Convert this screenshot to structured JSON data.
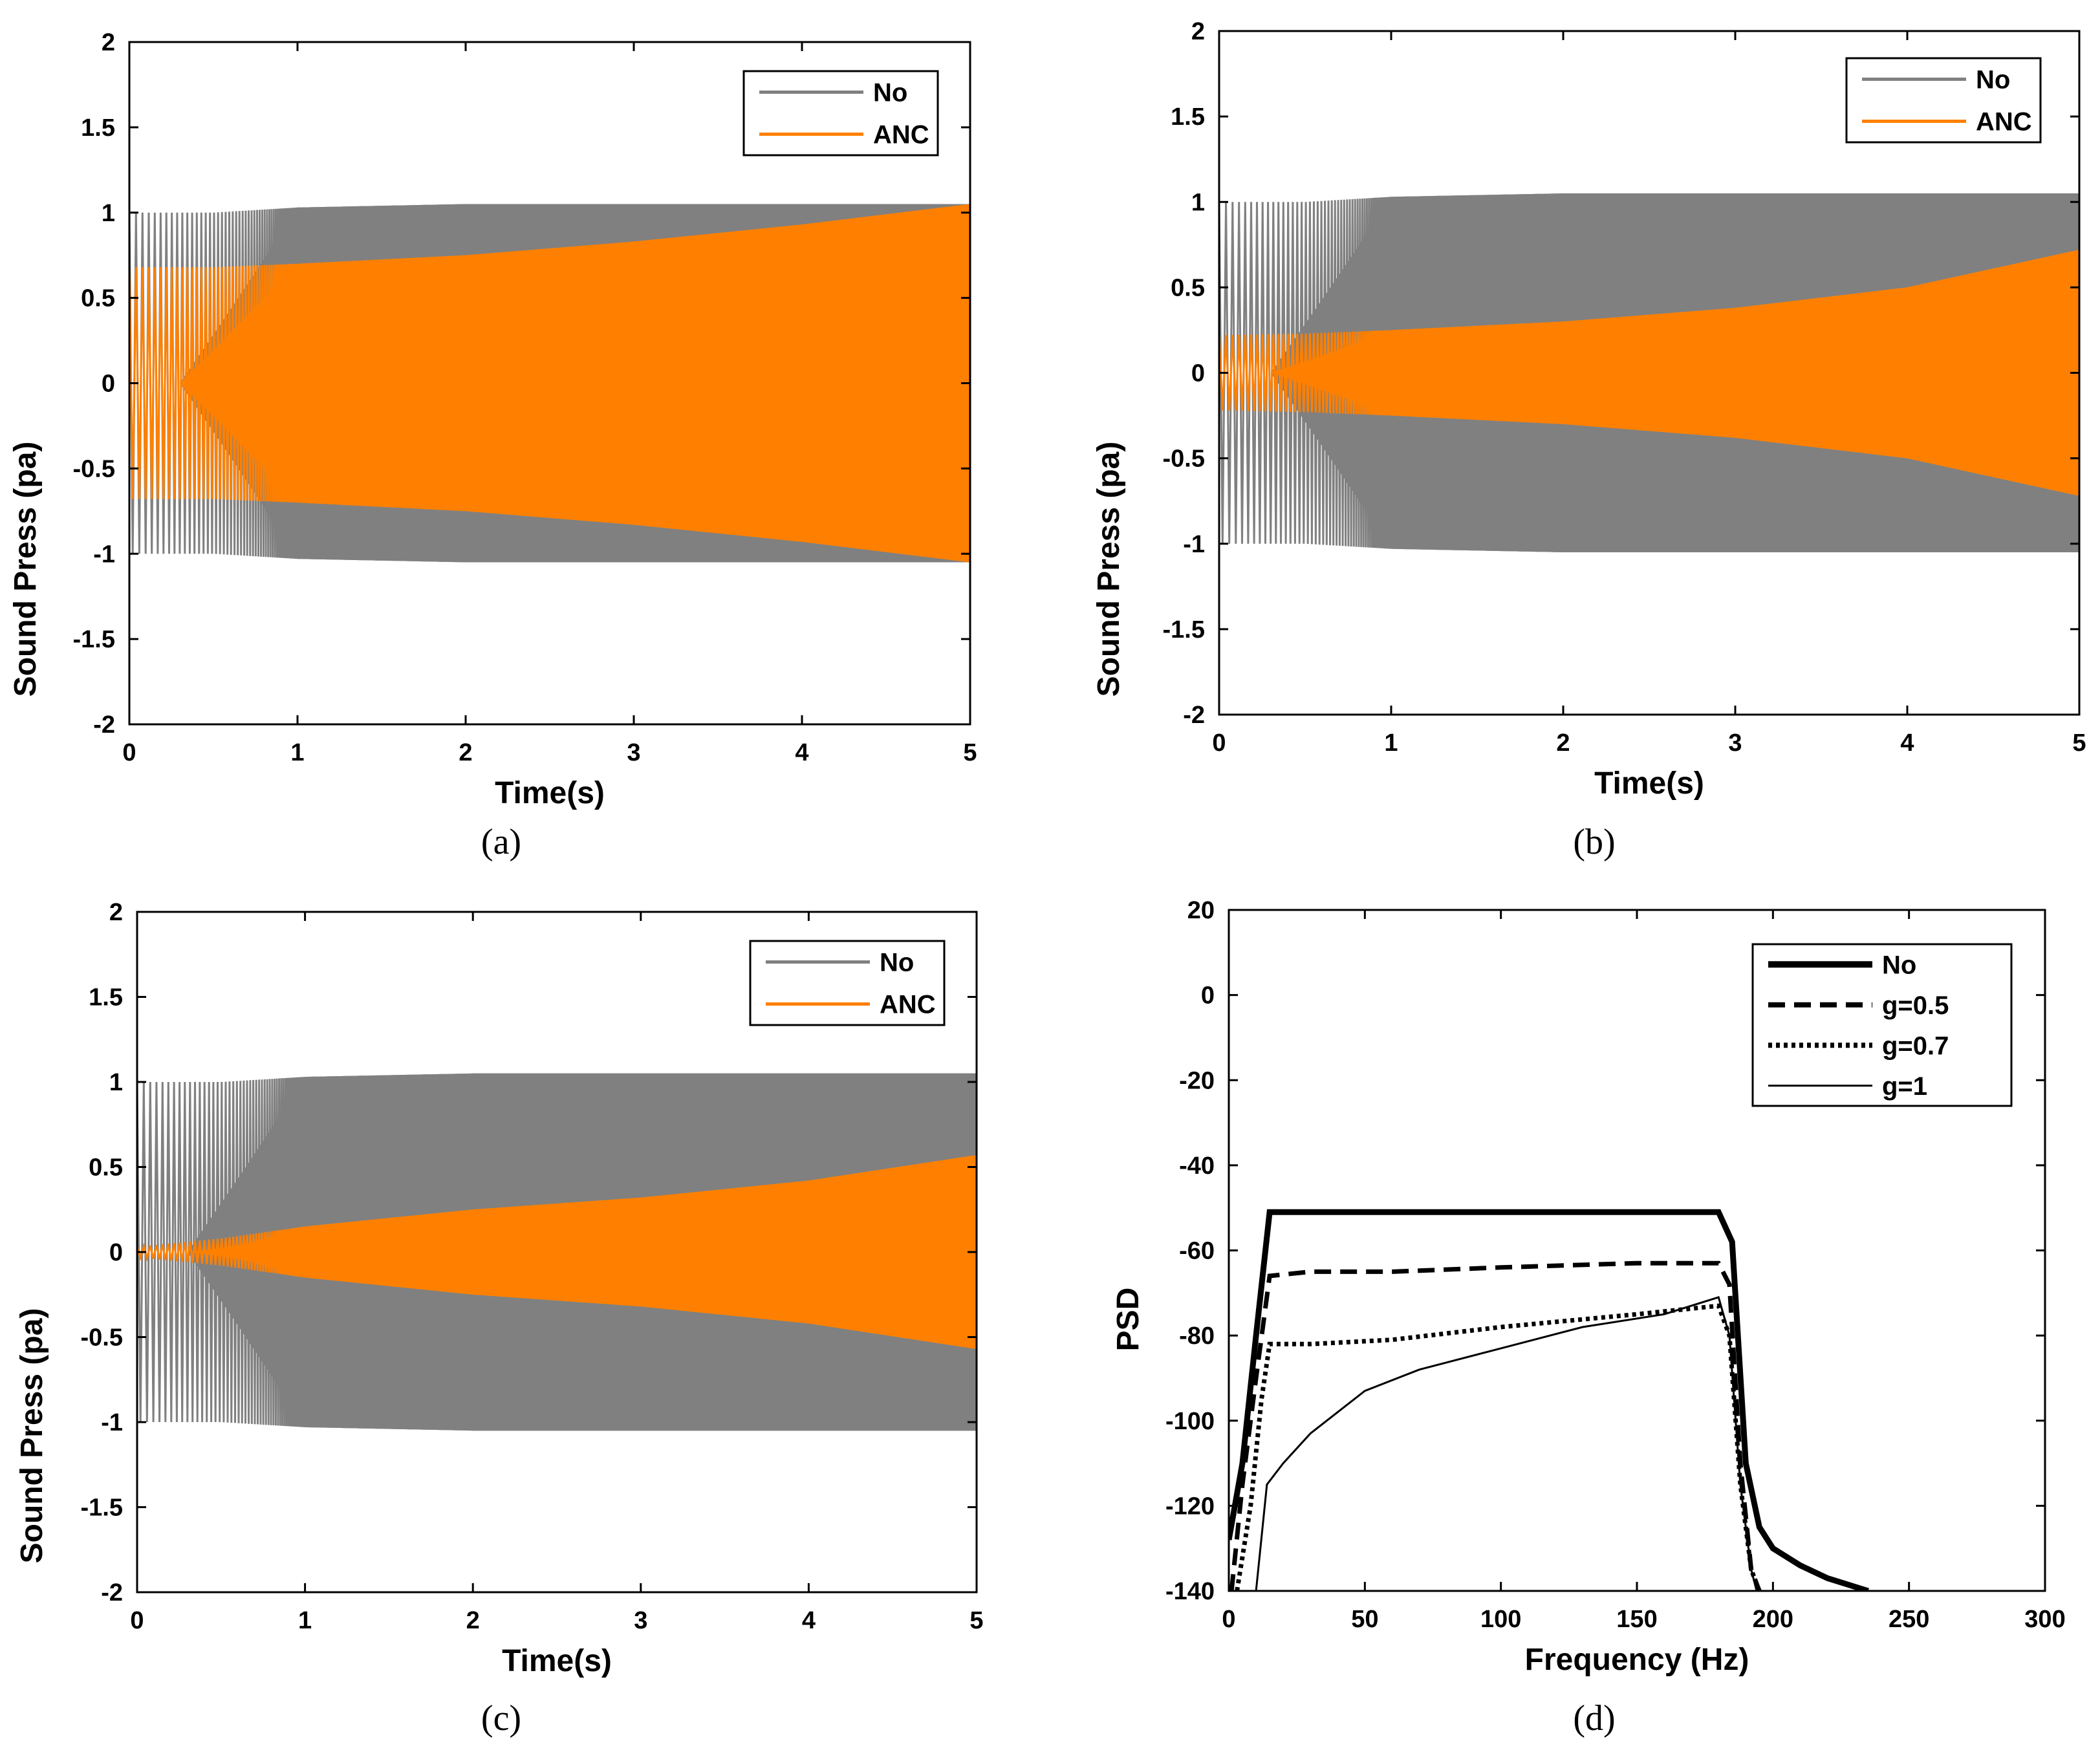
{
  "chart_data": [
    {
      "type": "line",
      "panel": "a",
      "caption": "(a)",
      "xlabel": "Time(s)",
      "ylabel": "Sound Press (pa)",
      "xlim": [
        0,
        5
      ],
      "ylim": [
        -2,
        2
      ],
      "xticks": [
        "0",
        "1",
        "2",
        "3",
        "4",
        "5"
      ],
      "yticks": [
        "-2",
        "-1.5",
        "-1",
        "-0.5",
        "0",
        "0.5",
        "1",
        "1.5",
        "2"
      ],
      "legend_position": "top-right",
      "series": [
        {
          "name": "No",
          "color": "#808080",
          "envelope_t": [
            0,
            0.5,
            1,
            2,
            3,
            4,
            5
          ],
          "envelope_amp": [
            1.0,
            1.0,
            1.03,
            1.05,
            1.05,
            1.05,
            1.05
          ]
        },
        {
          "name": "ANC",
          "color": "#ff8000",
          "envelope_t": [
            0,
            0.5,
            1,
            2,
            3,
            4,
            5
          ],
          "envelope_amp": [
            0.68,
            0.68,
            0.7,
            0.75,
            0.83,
            0.93,
            1.05
          ]
        }
      ]
    },
    {
      "type": "line",
      "panel": "b",
      "caption": "(b)",
      "xlabel": "Time(s)",
      "ylabel": "Sound Press (pa)",
      "xlim": [
        0,
        5
      ],
      "ylim": [
        -2,
        2
      ],
      "xticks": [
        "0",
        "1",
        "2",
        "3",
        "4",
        "5"
      ],
      "yticks": [
        "-2",
        "-1.5",
        "-1",
        "-0.5",
        "0",
        "0.5",
        "1",
        "1.5",
        "2"
      ],
      "legend_position": "top-right",
      "series": [
        {
          "name": "No",
          "color": "#808080",
          "envelope_t": [
            0,
            0.5,
            1,
            2,
            3,
            4,
            5
          ],
          "envelope_amp": [
            1.0,
            1.0,
            1.03,
            1.05,
            1.05,
            1.05,
            1.05
          ]
        },
        {
          "name": "ANC",
          "color": "#ff8000",
          "envelope_t": [
            0,
            0.5,
            1,
            2,
            3,
            4,
            5
          ],
          "envelope_amp": [
            0.22,
            0.23,
            0.25,
            0.3,
            0.38,
            0.5,
            0.72
          ]
        }
      ]
    },
    {
      "type": "line",
      "panel": "c",
      "caption": "(c)",
      "xlabel": "Time(s)",
      "ylabel": "Sound Press (pa)",
      "xlim": [
        0,
        5
      ],
      "ylim": [
        -2,
        2
      ],
      "xticks": [
        "0",
        "1",
        "2",
        "3",
        "4",
        "5"
      ],
      "yticks": [
        "-2",
        "-1.5",
        "-1",
        "-0.5",
        "0",
        "0.5",
        "1",
        "1.5",
        "2"
      ],
      "legend_position": "top-right",
      "series": [
        {
          "name": "No",
          "color": "#808080",
          "envelope_t": [
            0,
            0.5,
            1,
            2,
            3,
            4,
            5
          ],
          "envelope_amp": [
            1.0,
            1.0,
            1.03,
            1.05,
            1.05,
            1.05,
            1.05
          ]
        },
        {
          "name": "ANC",
          "color": "#ff8000",
          "envelope_t": [
            0,
            0.5,
            1,
            2,
            3,
            4,
            5
          ],
          "envelope_amp": [
            0.03,
            0.08,
            0.15,
            0.25,
            0.32,
            0.42,
            0.57
          ]
        }
      ]
    },
    {
      "type": "line",
      "panel": "d",
      "caption": "(d)",
      "xlabel": "Frequency (Hz)",
      "ylabel": "PSD",
      "xlim": [
        0,
        300
      ],
      "ylim": [
        -140,
        20
      ],
      "xticks": [
        "0",
        "50",
        "100",
        "150",
        "200",
        "250",
        "300"
      ],
      "yticks": [
        "-140",
        "-120",
        "-100",
        "-80",
        "-60",
        "-40",
        "-20",
        "0",
        "20"
      ],
      "legend_position": "top-right",
      "series": [
        {
          "name": "No",
          "color": "#000000",
          "style": "solid-thick",
          "x": [
            0,
            5,
            10,
            15,
            30,
            60,
            100,
            150,
            180,
            185,
            190,
            195,
            200,
            210,
            220,
            235
          ],
          "y": [
            -128,
            -110,
            -80,
            -51,
            -51,
            -51,
            -51,
            -51,
            -51,
            -58,
            -110,
            -125,
            -130,
            -134,
            -137,
            -140
          ]
        },
        {
          "name": "g=0.5",
          "color": "#000000",
          "style": "dashed",
          "x": [
            1,
            5,
            10,
            15,
            30,
            60,
            100,
            150,
            180,
            184,
            188,
            192,
            195
          ],
          "y": [
            -140,
            -115,
            -90,
            -66,
            -65,
            -65,
            -64,
            -63,
            -63,
            -68,
            -110,
            -135,
            -140
          ]
        },
        {
          "name": "g=0.7",
          "color": "#000000",
          "style": "dotted",
          "x": [
            3,
            8,
            12,
            15,
            30,
            60,
            100,
            150,
            180,
            184,
            188,
            192,
            195
          ],
          "y": [
            -140,
            -120,
            -95,
            -82,
            -82,
            -81,
            -78,
            -75,
            -73,
            -80,
            -115,
            -135,
            -140
          ]
        },
        {
          "name": "g=1",
          "color": "#000000",
          "style": "solid-thin",
          "x": [
            10,
            14,
            20,
            30,
            50,
            70,
            100,
            130,
            160,
            180,
            184,
            188,
            192,
            194
          ],
          "y": [
            -140,
            -115,
            -110,
            -103,
            -93,
            -88,
            -83,
            -78,
            -75,
            -71,
            -80,
            -115,
            -135,
            -140
          ]
        }
      ]
    }
  ]
}
